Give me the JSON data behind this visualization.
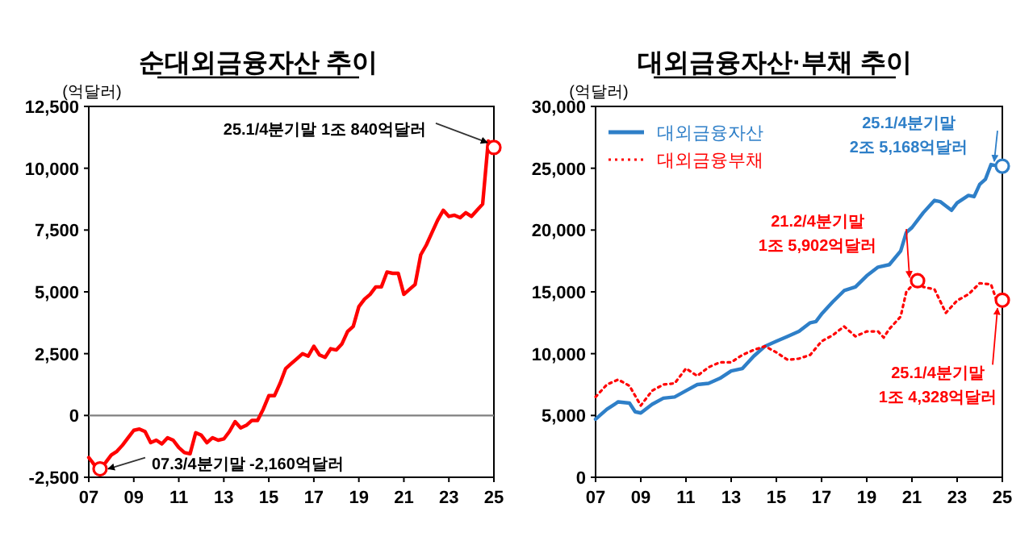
{
  "chart_data": [
    {
      "type": "line",
      "title": "순대외금융자산 추이",
      "ylabel": "(억달러)",
      "x": [
        2007.0,
        2007.25,
        2007.5,
        2007.75,
        2008.0,
        2008.25,
        2008.5,
        2008.75,
        2009.0,
        2009.25,
        2009.5,
        2009.75,
        2010.0,
        2010.25,
        2010.5,
        2010.75,
        2011.0,
        2011.25,
        2011.5,
        2011.75,
        2012.0,
        2012.25,
        2012.5,
        2012.75,
        2013.0,
        2013.25,
        2013.5,
        2013.75,
        2014.0,
        2014.25,
        2014.5,
        2014.75,
        2015.0,
        2015.25,
        2015.5,
        2015.75,
        2016.0,
        2016.25,
        2016.5,
        2016.75,
        2017.0,
        2017.25,
        2017.5,
        2017.75,
        2018.0,
        2018.25,
        2018.5,
        2018.75,
        2019.0,
        2019.25,
        2019.5,
        2019.75,
        2020.0,
        2020.25,
        2020.5,
        2020.75,
        2021.0,
        2021.25,
        2021.5,
        2021.75,
        2022.0,
        2022.25,
        2022.5,
        2022.75,
        2023.0,
        2023.25,
        2023.5,
        2023.75,
        2024.0,
        2024.25,
        2024.5,
        2024.75,
        2025.0
      ],
      "series": [
        {
          "color": "#ff0000",
          "values": [
            -1700,
            -2000,
            -2160,
            -1900,
            -1600,
            -1450,
            -1200,
            -900,
            -600,
            -550,
            -650,
            -1100,
            -1000,
            -1150,
            -900,
            -1000,
            -1300,
            -1500,
            -1550,
            -700,
            -800,
            -1100,
            -900,
            -1000,
            -950,
            -650,
            -250,
            -500,
            -400,
            -200,
            -200,
            250,
            800,
            800,
            1300,
            1900,
            2100,
            2300,
            2500,
            2400,
            2800,
            2450,
            2350,
            2700,
            2650,
            2900,
            3400,
            3600,
            4400,
            4700,
            4900,
            5200,
            5200,
            5800,
            5750,
            5750,
            4900,
            5100,
            5300,
            6500,
            6900,
            7400,
            7900,
            8300,
            8050,
            8100,
            8000,
            8200,
            8050,
            8300,
            8550,
            11100,
            10840
          ]
        }
      ],
      "xlim": [
        2007,
        2025
      ],
      "xticks": [
        {
          "value": 2007,
          "label": "07"
        },
        {
          "value": 2009,
          "label": "09"
        },
        {
          "value": 2011,
          "label": "11"
        },
        {
          "value": 2013,
          "label": "13"
        },
        {
          "value": 2015,
          "label": "15"
        },
        {
          "value": 2017,
          "label": "17"
        },
        {
          "value": 2019,
          "label": "19"
        },
        {
          "value": 2021,
          "label": "21"
        },
        {
          "value": 2023,
          "label": "23"
        },
        {
          "value": 2025,
          "label": "25"
        }
      ],
      "ylim": [
        -2500,
        12500
      ],
      "yticks": [
        {
          "value": -2500,
          "label": "-2,500"
        },
        0,
        {
          "value": 2500,
          "label": "2,500"
        },
        {
          "value": 5000,
          "label": "5,000"
        },
        {
          "value": 7500,
          "label": "7,500"
        },
        {
          "value": 10000,
          "label": "10,000"
        },
        {
          "value": 12500,
          "label": "12,500"
        }
      ],
      "ref_lines": [
        {
          "axis": "y",
          "value": 0,
          "color": "#808080"
        }
      ],
      "annotations": [
        {
          "text": "25.1/4분기말 1조 840억달러",
          "x": 2025.0,
          "y": 10840
        },
        {
          "text": "07.3/4분기말 -2,160억달러",
          "x": 2007.5,
          "y": -2160
        }
      ],
      "line_style": "solid",
      "marker": "none",
      "grid": false,
      "legend": false
    },
    {
      "type": "line",
      "title": "대외금융자산·부채 추이",
      "ylabel": "(억달러)",
      "series": [
        {
          "name": "대외금융자산",
          "color": "#2e7fc8",
          "line_style": "solid",
          "x": [
            2007.0,
            2007.5,
            2008.0,
            2008.5,
            2008.75,
            2009.0,
            2009.5,
            2010.0,
            2010.5,
            2011.0,
            2011.5,
            2012.0,
            2012.5,
            2013.0,
            2013.5,
            2014.0,
            2014.5,
            2015.0,
            2015.5,
            2016.0,
            2016.5,
            2016.75,
            2017.0,
            2017.5,
            2018.0,
            2018.5,
            2019.0,
            2019.5,
            2020.0,
            2020.5,
            2020.75,
            2021.0,
            2021.5,
            2022.0,
            2022.25,
            2022.75,
            2023.0,
            2023.5,
            2023.75,
            2024.0,
            2024.25,
            2024.5,
            2024.75,
            2025.0
          ],
          "values": [
            4700,
            5500,
            6100,
            6000,
            5300,
            5200,
            5900,
            6400,
            6500,
            7000,
            7500,
            7600,
            8000,
            8600,
            8800,
            9800,
            10600,
            11000,
            11400,
            11800,
            12500,
            12600,
            13200,
            14200,
            15100,
            15400,
            16300,
            17000,
            17200,
            18300,
            19800,
            20200,
            21400,
            22400,
            22300,
            21600,
            22200,
            22800,
            22700,
            23700,
            24100,
            25300,
            25200,
            25168
          ]
        },
        {
          "name": "대외금융부채",
          "color": "#ff0000",
          "line_style": "dotted",
          "x": [
            2007.0,
            2007.5,
            2008.0,
            2008.5,
            2009.0,
            2009.5,
            2010.0,
            2010.5,
            2011.0,
            2011.5,
            2012.0,
            2012.5,
            2013.0,
            2013.5,
            2014.0,
            2014.5,
            2015.0,
            2015.5,
            2016.0,
            2016.5,
            2017.0,
            2017.5,
            2018.0,
            2018.5,
            2019.0,
            2019.5,
            2019.75,
            2020.0,
            2020.5,
            2020.75,
            2021.0,
            2021.25,
            2021.5,
            2022.0,
            2022.5,
            2023.0,
            2023.5,
            2024.0,
            2024.5,
            2024.75,
            2025.0
          ],
          "values": [
            6500,
            7500,
            7900,
            7400,
            5800,
            7000,
            7500,
            7600,
            8800,
            8200,
            8900,
            9300,
            9300,
            9900,
            10300,
            10600,
            10100,
            9500,
            9600,
            9900,
            11000,
            11500,
            12200,
            11400,
            11800,
            11800,
            11300,
            12000,
            13000,
            15000,
            15500,
            15902,
            15400,
            15200,
            13300,
            14300,
            14800,
            15700,
            15600,
            14300,
            14328
          ]
        }
      ],
      "xlim": [
        2007,
        2025
      ],
      "xticks": [
        {
          "value": 2007,
          "label": "07"
        },
        {
          "value": 2009,
          "label": "09"
        },
        {
          "value": 2011,
          "label": "11"
        },
        {
          "value": 2013,
          "label": "13"
        },
        {
          "value": 2015,
          "label": "15"
        },
        {
          "value": 2017,
          "label": "17"
        },
        {
          "value": 2019,
          "label": "19"
        },
        {
          "value": 2021,
          "label": "21"
        },
        {
          "value": 2023,
          "label": "23"
        },
        {
          "value": 2025,
          "label": "25"
        }
      ],
      "ylim": [
        0,
        30000
      ],
      "yticks": [
        0,
        {
          "value": 5000,
          "label": "5,000"
        },
        {
          "value": 10000,
          "label": "10,000"
        },
        {
          "value": 15000,
          "label": "15,000"
        },
        {
          "value": 20000,
          "label": "20,000"
        },
        {
          "value": 25000,
          "label": "25,000"
        },
        {
          "value": 30000,
          "label": "30,000"
        }
      ],
      "annotations": [
        {
          "text": "25.1/4분기말\n2조 5,168억달러",
          "x": 2025.0,
          "y": 25168
        },
        {
          "text": "21.2/4분기말\n1조 5,902억달러",
          "x": 2021.25,
          "y": 15902
        },
        {
          "text": "25.1/4분기말\n1조 4,328억달러",
          "x": 2025.0,
          "y": 14328
        }
      ],
      "marker": "none",
      "grid": false,
      "legend": "top left"
    }
  ]
}
